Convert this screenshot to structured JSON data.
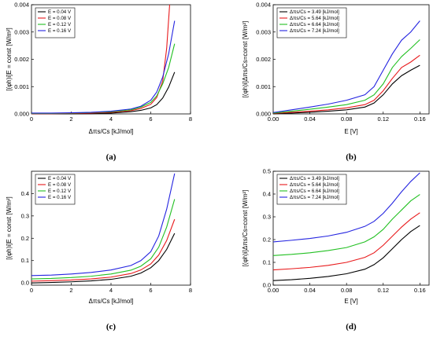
{
  "chart_data": [
    {
      "type": "line",
      "panel_label": "(a)",
      "xlabel": "Δπs/Cs [kJ/mol]",
      "ylabel": "[(φh)i]E = const [W/m²]",
      "xlim": [
        0,
        8
      ],
      "ylim": [
        0,
        0.004
      ],
      "xticks": [
        "0",
        "2",
        "4",
        "6",
        "8"
      ],
      "yticks": [
        "0.000",
        "0.001",
        "0.002",
        "0.003",
        "0.004"
      ],
      "legend_position": "top-left",
      "series": [
        {
          "name": "E = 0.04 V",
          "color": "#000000",
          "x": [
            0,
            1,
            2,
            3,
            4,
            5,
            5.5,
            6,
            6.3,
            6.6,
            6.9,
            7.2
          ],
          "y": [
            0.0,
            0.0,
            0.0,
            1e-05,
            3e-05,
            8e-05,
            0.00013,
            0.00022,
            0.00034,
            0.00058,
            0.00098,
            0.00153
          ]
        },
        {
          "name": "E = 0.08 V",
          "color": "#e8191b",
          "x": [
            0,
            1,
            2,
            3,
            4,
            5,
            5.5,
            6,
            6.3,
            6.6,
            6.8,
            6.95
          ],
          "y": [
            1e-05,
            1e-05,
            2e-05,
            3e-05,
            6e-05,
            0.00012,
            0.0002,
            0.00035,
            0.0006,
            0.0012,
            0.0024,
            0.004
          ]
        },
        {
          "name": "E = 0.12 V",
          "color": "#22c022",
          "x": [
            0,
            1,
            2,
            3,
            4,
            5,
            5.5,
            6,
            6.3,
            6.6,
            6.9,
            7.2
          ],
          "y": [
            2e-05,
            2e-05,
            3e-05,
            5e-05,
            8e-05,
            0.00015,
            0.00025,
            0.00042,
            0.00066,
            0.0011,
            0.0017,
            0.00257
          ]
        },
        {
          "name": "E = 0.16 V",
          "color": "#2424e0",
          "x": [
            0,
            1,
            2,
            3,
            4,
            5,
            5.5,
            6,
            6.3,
            6.6,
            6.9,
            7.2
          ],
          "y": [
            3e-05,
            3e-05,
            4e-05,
            6e-05,
            0.0001,
            0.00018,
            0.00028,
            0.0005,
            0.0008,
            0.00135,
            0.0022,
            0.00341
          ]
        }
      ]
    },
    {
      "type": "line",
      "panel_label": "(b)",
      "xlabel": "E [V]",
      "ylabel": "[(φh)i]Δπs/Cs=const [W/m²]",
      "xlim": [
        0,
        0.17
      ],
      "ylim": [
        0,
        0.004
      ],
      "xticks": [
        "0.00",
        "0.04",
        "0.08",
        "0.12",
        "0.16"
      ],
      "xtick_values": [
        0,
        0.04,
        0.08,
        0.12,
        0.16
      ],
      "yticks": [
        "0.000",
        "0.001",
        "0.002",
        "0.003",
        "0.004"
      ],
      "legend_position": "top-left",
      "series": [
        {
          "name": "Δπs/Cs = 3.49 [kJ/mol]",
          "color": "#000000",
          "x": [
            0,
            0.02,
            0.04,
            0.06,
            0.08,
            0.1,
            0.11,
            0.12,
            0.13,
            0.14,
            0.15,
            0.16
          ],
          "y": [
            1e-05,
            3e-05,
            6e-05,
            0.0001,
            0.00015,
            0.00025,
            0.0004,
            0.0007,
            0.0011,
            0.0014,
            0.0016,
            0.00178
          ]
        },
        {
          "name": "Δπs/Cs = 5.64 [kJ/mol]",
          "color": "#e8191b",
          "x": [
            0,
            0.02,
            0.04,
            0.06,
            0.08,
            0.1,
            0.11,
            0.12,
            0.13,
            0.14,
            0.15,
            0.16
          ],
          "y": [
            2e-05,
            6e-05,
            0.0001,
            0.00015,
            0.00022,
            0.00034,
            0.0005,
            0.00085,
            0.0013,
            0.0017,
            0.0019,
            0.00215
          ]
        },
        {
          "name": "Δπs/Cs = 6.64 [kJ/mol]",
          "color": "#22c022",
          "x": [
            0,
            0.02,
            0.04,
            0.06,
            0.08,
            0.1,
            0.11,
            0.12,
            0.13,
            0.14,
            0.15,
            0.16
          ],
          "y": [
            3e-05,
            0.0001,
            0.00017,
            0.00025,
            0.00034,
            0.0005,
            0.0007,
            0.0011,
            0.0017,
            0.0021,
            0.0024,
            0.00272
          ]
        },
        {
          "name": "Δπs/Cs = 7.24 [kJ/mol]",
          "color": "#2424e0",
          "x": [
            0,
            0.02,
            0.04,
            0.06,
            0.08,
            0.1,
            0.11,
            0.12,
            0.13,
            0.14,
            0.15,
            0.16
          ],
          "y": [
            5e-05,
            0.00015,
            0.00025,
            0.00036,
            0.0005,
            0.0007,
            0.001,
            0.0016,
            0.0022,
            0.0027,
            0.003,
            0.00341
          ]
        }
      ]
    },
    {
      "type": "line",
      "panel_label": "(c)",
      "xlabel": "Δπs/Cs [kJ/mol]",
      "ylabel": "[(φh)i]E = const [W/m²]",
      "xlim": [
        0,
        8
      ],
      "ylim": [
        -0.01,
        0.5
      ],
      "xticks": [
        "0",
        "2",
        "4",
        "6",
        "8"
      ],
      "ytick_values": [
        0.0,
        0.1,
        0.2,
        0.3,
        0.4
      ],
      "yticks": [
        "0.0",
        "0.1",
        "0.2",
        "0.3",
        "0.4"
      ],
      "legend_position": "top-left",
      "series": [
        {
          "name": "E = 0.04 V",
          "color": "#000000",
          "x": [
            0,
            1,
            2,
            3,
            4,
            5,
            5.5,
            6,
            6.4,
            6.8,
            7.2
          ],
          "y": [
            0.0,
            0.002,
            0.005,
            0.009,
            0.016,
            0.03,
            0.044,
            0.068,
            0.1,
            0.15,
            0.222
          ]
        },
        {
          "name": "E = 0.08 V",
          "color": "#e8191b",
          "x": [
            0,
            1,
            2,
            3,
            4,
            5,
            5.5,
            6,
            6.4,
            6.8,
            7.2
          ],
          "y": [
            0.008,
            0.01,
            0.013,
            0.018,
            0.026,
            0.042,
            0.058,
            0.085,
            0.125,
            0.19,
            0.285
          ]
        },
        {
          "name": "E = 0.12 V",
          "color": "#22c022",
          "x": [
            0,
            1,
            2,
            3,
            4,
            5,
            5.5,
            6,
            6.4,
            6.8,
            7.2
          ],
          "y": [
            0.018,
            0.02,
            0.024,
            0.03,
            0.04,
            0.057,
            0.075,
            0.108,
            0.16,
            0.25,
            0.375
          ]
        },
        {
          "name": "E = 0.16 V",
          "color": "#2424e0",
          "x": [
            0,
            1,
            2,
            3,
            4,
            5,
            5.5,
            6,
            6.4,
            6.8,
            7.2
          ],
          "y": [
            0.033,
            0.035,
            0.04,
            0.047,
            0.058,
            0.078,
            0.1,
            0.14,
            0.21,
            0.33,
            0.49
          ]
        }
      ]
    },
    {
      "type": "line",
      "panel_label": "(d)",
      "xlabel": "E [V]",
      "ylabel": "[(φh)i]Δπs/Cs=const [W/m²]",
      "xlim": [
        0,
        0.17
      ],
      "ylim": [
        0.0,
        0.5
      ],
      "xticks": [
        "0.00",
        "0.04",
        "0.08",
        "0.12",
        "0.16"
      ],
      "xtick_values": [
        0,
        0.04,
        0.08,
        0.12,
        0.16
      ],
      "yticks": [
        "0.0",
        "0.1",
        "0.2",
        "0.3",
        "0.4",
        "0.5"
      ],
      "legend_position": "top-left",
      "series": [
        {
          "name": "Δπs/Cs = 3.49 [kJ/mol]",
          "color": "#000000",
          "x": [
            0,
            0.02,
            0.04,
            0.06,
            0.08,
            0.1,
            0.11,
            0.12,
            0.13,
            0.14,
            0.15,
            0.16
          ],
          "y": [
            0.02,
            0.024,
            0.03,
            0.038,
            0.05,
            0.07,
            0.09,
            0.12,
            0.16,
            0.2,
            0.235,
            0.262
          ]
        },
        {
          "name": "Δπs/Cs = 5.64 [kJ/mol]",
          "color": "#e8191b",
          "x": [
            0,
            0.02,
            0.04,
            0.06,
            0.08,
            0.1,
            0.11,
            0.12,
            0.13,
            0.14,
            0.15,
            0.16
          ],
          "y": [
            0.067,
            0.072,
            0.078,
            0.087,
            0.1,
            0.122,
            0.142,
            0.175,
            0.215,
            0.255,
            0.29,
            0.318
          ]
        },
        {
          "name": "Δπs/Cs = 6.64 [kJ/mol]",
          "color": "#22c022",
          "x": [
            0,
            0.02,
            0.04,
            0.06,
            0.08,
            0.1,
            0.11,
            0.12,
            0.13,
            0.14,
            0.15,
            0.16
          ],
          "y": [
            0.13,
            0.135,
            0.142,
            0.152,
            0.165,
            0.19,
            0.212,
            0.245,
            0.29,
            0.33,
            0.37,
            0.398
          ]
        },
        {
          "name": "Δπs/Cs = 7.24 [kJ/mol]",
          "color": "#2424e0",
          "x": [
            0,
            0.02,
            0.04,
            0.06,
            0.08,
            0.1,
            0.11,
            0.12,
            0.13,
            0.14,
            0.15,
            0.16
          ],
          "y": [
            0.19,
            0.197,
            0.205,
            0.216,
            0.232,
            0.258,
            0.28,
            0.315,
            0.36,
            0.41,
            0.455,
            0.493
          ]
        }
      ]
    }
  ]
}
